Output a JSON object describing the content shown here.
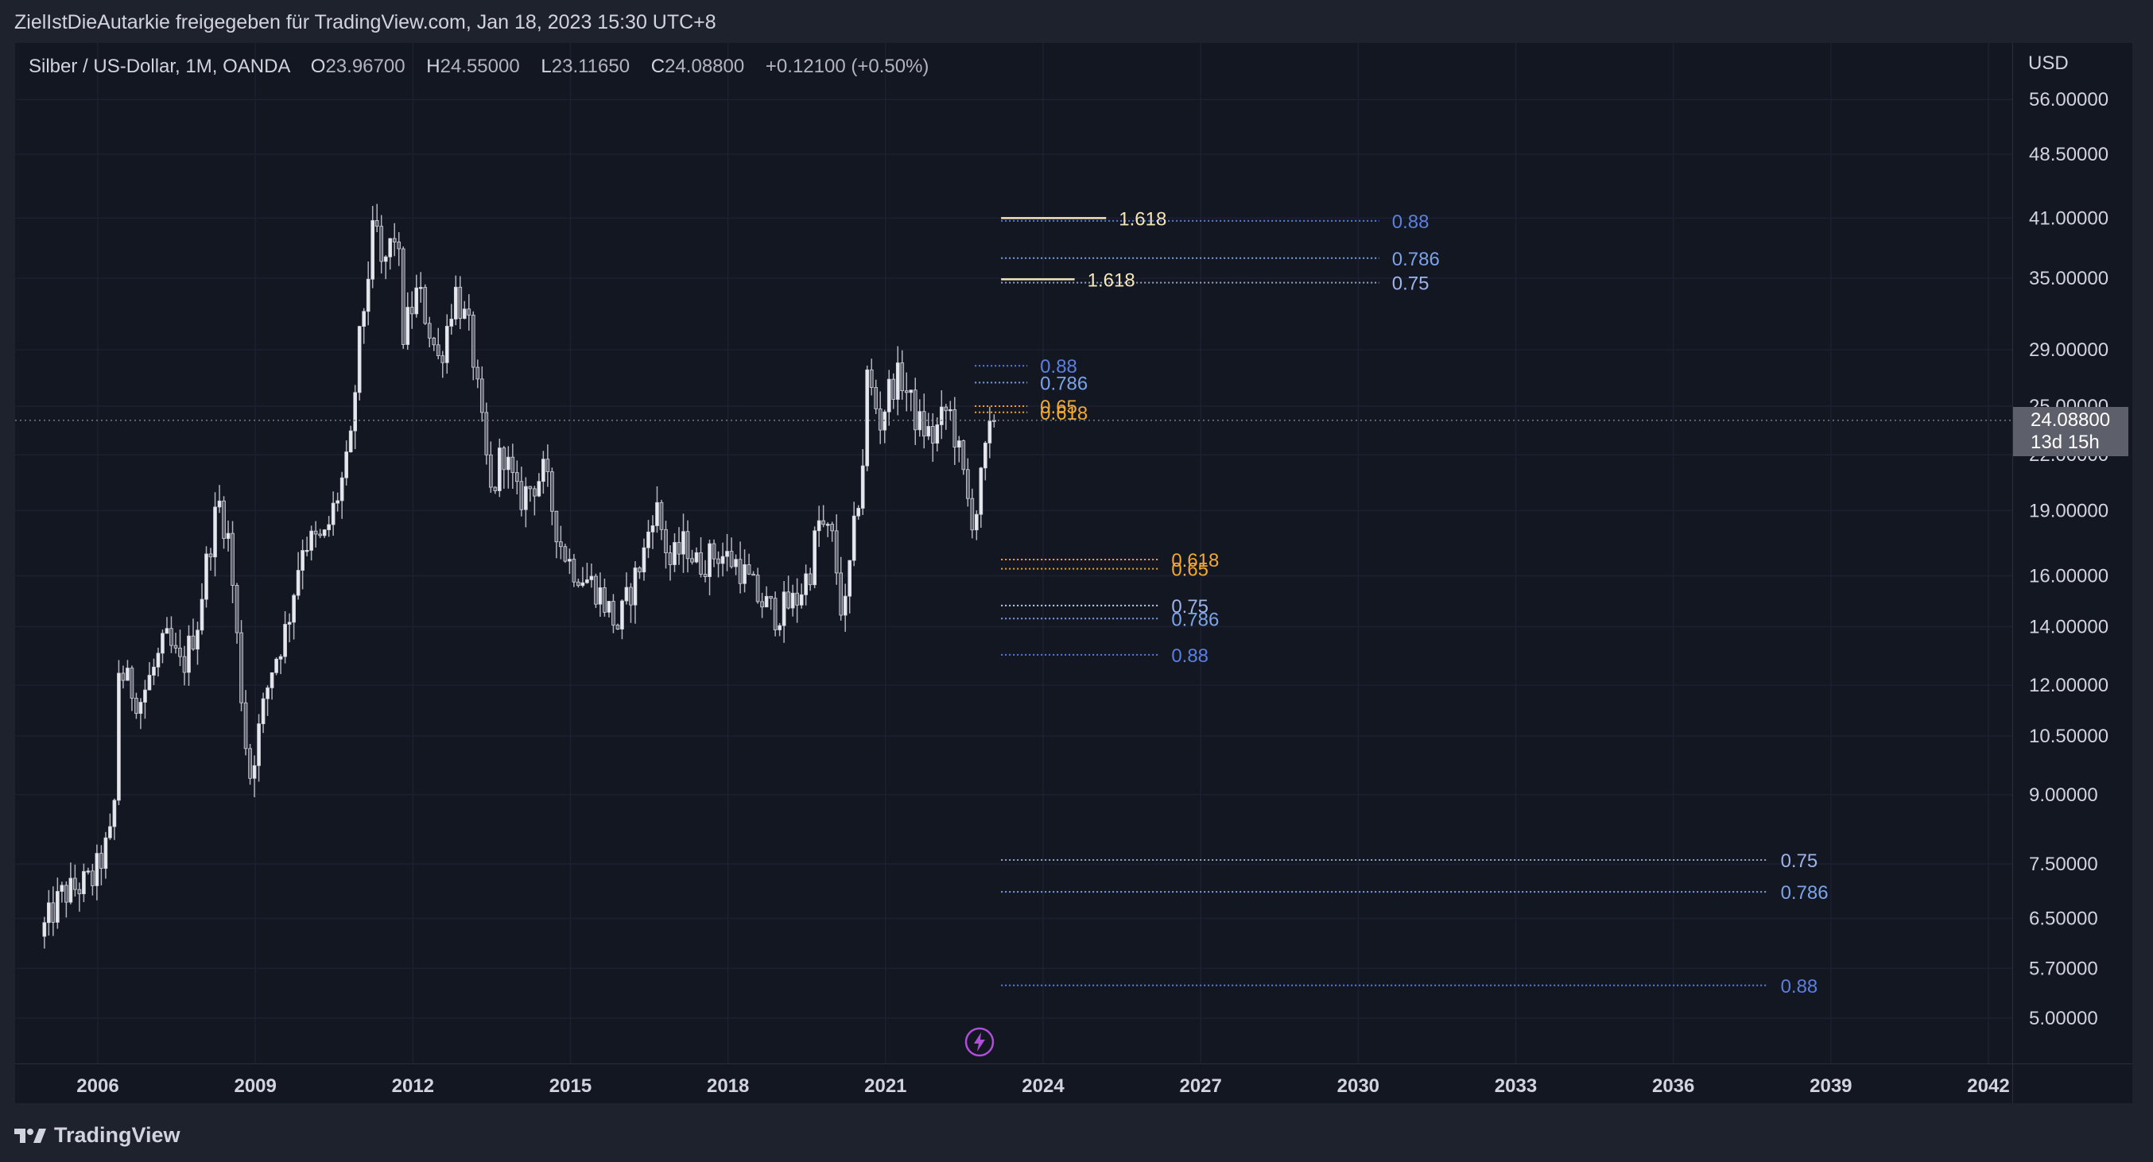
{
  "header": {
    "share_text": "ZielIstDieAutarkie freigegeben für TradingView.com, Jan 18, 2023 15:30 UTC+8"
  },
  "legend": {
    "symbol": "Silber / US-Dollar, 1M, OANDA",
    "open_label": "O",
    "open": "23.96700",
    "high_label": "H",
    "high": "24.55000",
    "low_label": "L",
    "low": "23.11650",
    "close_label": "C",
    "close": "24.08800",
    "change": "+0.12100 (+0.50%)"
  },
  "price_scale": {
    "currency": "USD",
    "current_price": "24.08800",
    "countdown": "13d 15h"
  },
  "footer": {
    "brand": "TradingView"
  },
  "icons": {
    "logo": "tradingview-logo-icon",
    "bolt": "lightning-bolt-icon"
  },
  "colors": {
    "background": "#131722",
    "candle": "#d1d4dc",
    "fib_blue": "#5b7fe0",
    "fib_light_blue": "#7ba3e8",
    "fib_orange": "#f0a830",
    "fib_white": "#e0e3eb",
    "fib_cream": "#f5e6b8",
    "bolt": "#b04dd9"
  },
  "chart_data": {
    "type": "candlestick",
    "title": "Silber / US-Dollar, 1M, OANDA",
    "scale": "log",
    "y_ticks": [
      {
        "value": 56,
        "label": "56.00000"
      },
      {
        "value": 48.5,
        "label": "48.50000"
      },
      {
        "value": 41,
        "label": "41.00000"
      },
      {
        "value": 35,
        "label": "35.00000"
      },
      {
        "value": 29,
        "label": "29.00000"
      },
      {
        "value": 25,
        "label": "25.00000"
      },
      {
        "value": 22,
        "label": "22.00000"
      },
      {
        "value": 19,
        "label": "19.00000"
      },
      {
        "value": 16,
        "label": "16.00000"
      },
      {
        "value": 14,
        "label": "14.00000"
      },
      {
        "value": 12,
        "label": "12.00000"
      },
      {
        "value": 10.5,
        "label": "10.50000"
      },
      {
        "value": 9,
        "label": "9.00000"
      },
      {
        "value": 7.5,
        "label": "7.50000"
      },
      {
        "value": 6.5,
        "label": "6.50000"
      },
      {
        "value": 5.7,
        "label": "5.70000"
      },
      {
        "value": 5,
        "label": "5.00000"
      }
    ],
    "x_ticks": [
      {
        "year": 2006,
        "label": "2006"
      },
      {
        "year": 2009,
        "label": "2009"
      },
      {
        "year": 2012,
        "label": "2012"
      },
      {
        "year": 2015,
        "label": "2015"
      },
      {
        "year": 2018,
        "label": "2018"
      },
      {
        "year": 2021,
        "label": "2021"
      },
      {
        "year": 2024,
        "label": "2024"
      },
      {
        "year": 2027,
        "label": "2027"
      },
      {
        "year": 2030,
        "label": "2030"
      },
      {
        "year": 2033,
        "label": "2033"
      },
      {
        "year": 2036,
        "label": "2036"
      },
      {
        "year": 2039,
        "label": "2039"
      },
      {
        "year": 2042,
        "label": "2042"
      }
    ],
    "price_anchors": [
      [
        2004.9,
        6.2
      ],
      [
        2005.3,
        6.9
      ],
      [
        2005.9,
        7.2
      ],
      [
        2006.3,
        8.2
      ],
      [
        2006.4,
        12.5
      ],
      [
        2006.8,
        11.5
      ],
      [
        2007.3,
        13.5
      ],
      [
        2007.6,
        12.5
      ],
      [
        2007.9,
        14.2
      ],
      [
        2008.1,
        17.0
      ],
      [
        2008.3,
        19.5
      ],
      [
        2008.5,
        17.5
      ],
      [
        2008.8,
        10.5
      ],
      [
        2008.9,
        9.5
      ],
      [
        2009.3,
        12.5
      ],
      [
        2009.6,
        14.0
      ],
      [
        2009.9,
        17.5
      ],
      [
        2010.3,
        17.5
      ],
      [
        2010.8,
        22.0
      ],
      [
        2010.95,
        28.5
      ],
      [
        2011.3,
        42.0
      ],
      [
        2011.35,
        35.0
      ],
      [
        2011.7,
        40.0
      ],
      [
        2011.8,
        30.0
      ],
      [
        2012.1,
        34.0
      ],
      [
        2012.5,
        28.0
      ],
      [
        2012.8,
        34.0
      ],
      [
        2013.1,
        30.0
      ],
      [
        2013.3,
        24.0
      ],
      [
        2013.5,
        19.5
      ],
      [
        2013.7,
        22.5
      ],
      [
        2014.0,
        19.5
      ],
      [
        2014.5,
        21.0
      ],
      [
        2014.8,
        17.5
      ],
      [
        2015.0,
        16.5
      ],
      [
        2015.5,
        15.5
      ],
      [
        2015.9,
        14.0
      ],
      [
        2016.4,
        17.0
      ],
      [
        2016.6,
        19.5
      ],
      [
        2016.9,
        16.5
      ],
      [
        2017.2,
        17.5
      ],
      [
        2017.4,
        16.5
      ],
      [
        2017.8,
        17.0
      ],
      [
        2018.2,
        16.5
      ],
      [
        2018.6,
        15.0
      ],
      [
        2018.9,
        14.5
      ],
      [
        2019.3,
        15.0
      ],
      [
        2019.6,
        16.5
      ],
      [
        2019.7,
        18.5
      ],
      [
        2020.0,
        17.5
      ],
      [
        2020.2,
        14.0
      ],
      [
        2020.3,
        16.0
      ],
      [
        2020.6,
        22.5
      ],
      [
        2020.65,
        27.0
      ],
      [
        2020.9,
        24.0
      ],
      [
        2021.1,
        26.5
      ],
      [
        2021.3,
        27.0
      ],
      [
        2021.6,
        24.0
      ],
      [
        2021.9,
        23.0
      ],
      [
        2022.2,
        25.0
      ],
      [
        2022.4,
        22.0
      ],
      [
        2022.6,
        19.0
      ],
      [
        2022.7,
        18.5
      ],
      [
        2022.9,
        22.0
      ],
      [
        2023.05,
        24.088
      ]
    ],
    "current_price": 24.088,
    "fib_levels": [
      {
        "label": "0.88",
        "value": 40.7,
        "x_start": 2023.2,
        "x_end": 2030.4,
        "color": "#5b7fe0",
        "text_color": "#5b7fe0"
      },
      {
        "label": "0.786",
        "value": 36.9,
        "x_start": 2023.2,
        "x_end": 2030.4,
        "color": "#7ba3e8",
        "text_color": "#7ba3e8"
      },
      {
        "label": "0.75",
        "value": 34.6,
        "x_start": 2023.2,
        "x_end": 2030.4,
        "color": "#9aa4c8",
        "text_color": "#9db4ea"
      },
      {
        "label": "1.618",
        "value": 41.0,
        "x_start": 2023.2,
        "x_end": 2025.2,
        "color": "#f5e6b8",
        "text_color": "#f5e6b8",
        "solid": true
      },
      {
        "label": "1.618",
        "value": 34.9,
        "x_start": 2023.2,
        "x_end": 2024.6,
        "color": "#f5e6b8",
        "text_color": "#f5e6b8",
        "solid": true
      },
      {
        "label": "0.88",
        "value": 27.8,
        "x_start": 2022.7,
        "x_end": 2023.7,
        "color": "#5b7fe0",
        "text_color": "#5b7fe0"
      },
      {
        "label": "0.786",
        "value": 26.6,
        "x_start": 2022.7,
        "x_end": 2023.7,
        "color": "#7ba3e8",
        "text_color": "#7ba3e8"
      },
      {
        "label": "0.65",
        "value": 25.0,
        "x_start": 2022.7,
        "x_end": 2023.7,
        "color": "#f0a830",
        "text_color": "#f0a830"
      },
      {
        "label": "0.618",
        "value": 24.6,
        "x_start": 2022.7,
        "x_end": 2023.7,
        "color": "#f0a830",
        "text_color": "#f0a830"
      },
      {
        "label": "0.618",
        "value": 16.7,
        "x_start": 2023.2,
        "x_end": 2026.2,
        "color": "#f0a830",
        "text_color": "#f0a830"
      },
      {
        "label": "0.65",
        "value": 16.3,
        "x_start": 2023.2,
        "x_end": 2026.2,
        "color": "#f0a830",
        "text_color": "#f0a830"
      },
      {
        "label": "0.75",
        "value": 14.8,
        "x_start": 2023.2,
        "x_end": 2026.2,
        "color": "#c8d4f0",
        "text_color": "#9db4ea"
      },
      {
        "label": "0.786",
        "value": 14.3,
        "x_start": 2023.2,
        "x_end": 2026.2,
        "color": "#7ba3e8",
        "text_color": "#7ba3e8"
      },
      {
        "label": "0.88",
        "value": 13.0,
        "x_start": 2023.2,
        "x_end": 2026.2,
        "color": "#5b7fe0",
        "text_color": "#5b7fe0"
      },
      {
        "label": "0.75",
        "value": 7.58,
        "x_start": 2023.2,
        "x_end": 2037.8,
        "color": "#9aa4c8",
        "text_color": "#9db4ea"
      },
      {
        "label": "0.786",
        "value": 6.97,
        "x_start": 2023.2,
        "x_end": 2037.8,
        "color": "#7ba3e8",
        "text_color": "#7ba3e8"
      },
      {
        "label": "0.88",
        "value": 5.45,
        "x_start": 2023.2,
        "x_end": 2037.8,
        "color": "#5b7fe0",
        "text_color": "#5b7fe0"
      }
    ]
  }
}
